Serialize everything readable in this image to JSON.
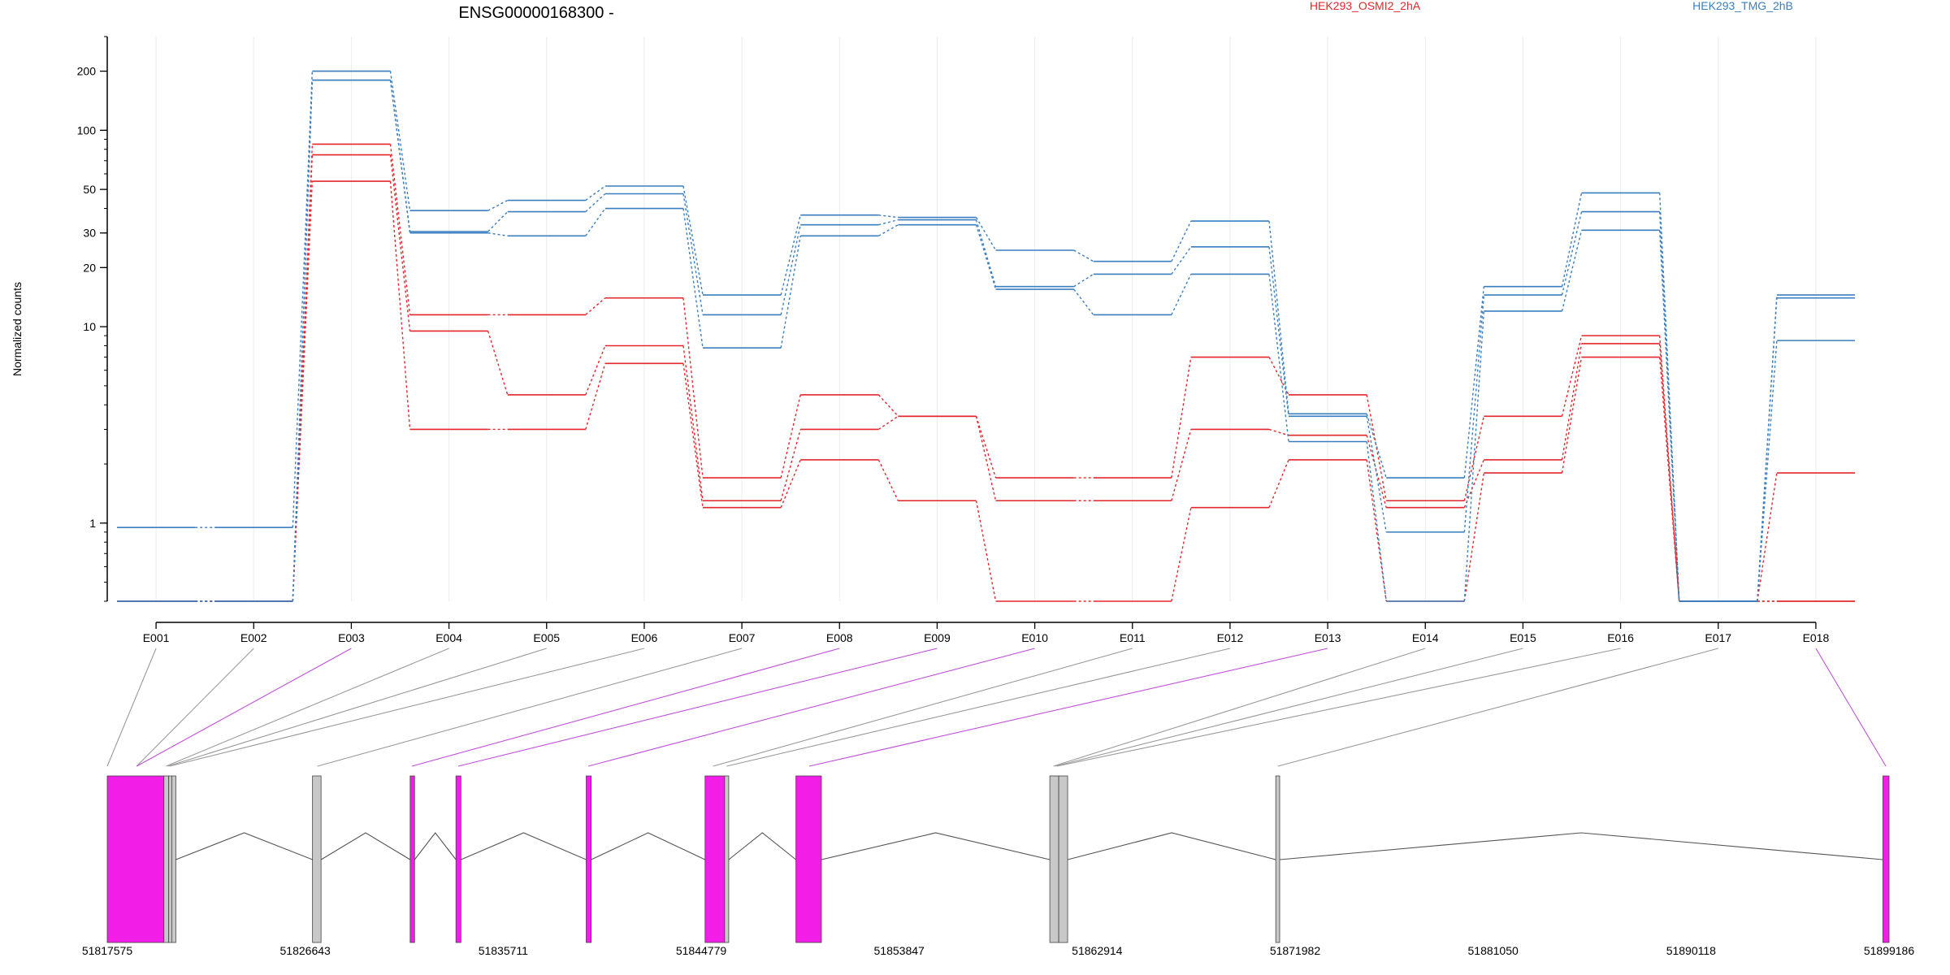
{
  "chart_data": {
    "type": "line",
    "title": "ENSG00000168300 -",
    "ylabel": "Normalized counts",
    "xlabel": "",
    "yscale": "log",
    "ylim": [
      0.4,
      300
    ],
    "yticks": [
      1,
      10,
      20,
      30,
      50,
      100,
      200
    ],
    "grid": "vertical",
    "legend_placement": "top",
    "categories": [
      "E001",
      "E002",
      "E003",
      "E004",
      "E005",
      "E006",
      "E007",
      "E008",
      "E009",
      "E010",
      "E011",
      "E012",
      "E013",
      "E014",
      "E015",
      "E016",
      "E017",
      "E018"
    ],
    "groups": [
      {
        "name": "HEK293_OSMI2_2hA",
        "color": "#e3262b"
      },
      {
        "name": "HEK293_TMG_2hB",
        "color": "#3a7ebf"
      }
    ],
    "series": [
      {
        "group": 0,
        "values": [
          0.4,
          0.4,
          85,
          11.5,
          11.5,
          14,
          1.7,
          4.5,
          3.5,
          1.7,
          1.7,
          7,
          4.5,
          1.3,
          3.5,
          9,
          0.4,
          0.4
        ]
      },
      {
        "group": 0,
        "values": [
          0.4,
          0.4,
          75,
          9.5,
          4.5,
          8,
          1.3,
          3,
          3.5,
          1.3,
          1.3,
          3,
          2.8,
          1.2,
          2.1,
          8.2,
          0.4,
          1.8
        ]
      },
      {
        "group": 0,
        "values": [
          0.4,
          0.4,
          55,
          3,
          3,
          6.5,
          1.2,
          2.1,
          1.3,
          0.4,
          0.4,
          1.2,
          2.1,
          0.4,
          1.8,
          7,
          0.4,
          0.4
        ]
      },
      {
        "group": 1,
        "values": [
          0.95,
          0.95,
          200,
          39,
          44,
          52,
          14.5,
          37,
          36,
          24.5,
          21.5,
          34.5,
          3.6,
          1.7,
          16,
          48,
          0.4,
          14.5
        ]
      },
      {
        "group": 1,
        "values": [
          0.4,
          0.4,
          180,
          30.5,
          38.5,
          47.5,
          11.5,
          33,
          35,
          16,
          18.5,
          25.5,
          3.5,
          0.9,
          14.5,
          38.5,
          0.4,
          14
        ]
      },
      {
        "group": 1,
        "values": [
          0.4,
          0.4,
          180,
          30,
          29,
          40,
          7.8,
          29,
          33,
          15.5,
          11.5,
          18.5,
          2.6,
          0.4,
          12,
          31,
          0.4,
          8.5
        ]
      }
    ]
  },
  "gene_model": {
    "axis_labels": [
      "51817575",
      "51826643",
      "51835711",
      "51844779",
      "51853847",
      "51862914",
      "51871982",
      "51881050",
      "51890118",
      "51899186"
    ],
    "highlight_color": "#f31de8",
    "neutral_color": "#c8c8c8"
  }
}
